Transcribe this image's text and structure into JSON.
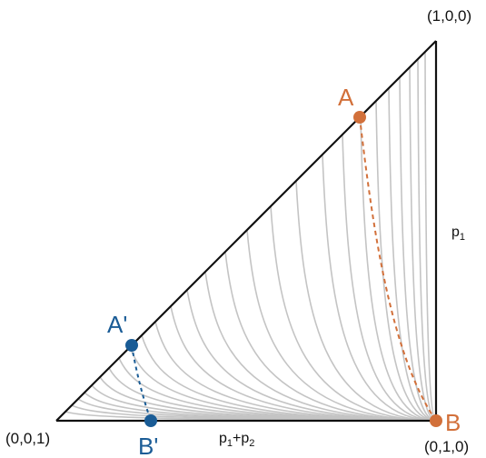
{
  "colors": {
    "orange": "#d2703a",
    "blue": "#1a5c96",
    "curve_gray": "#c4c4c4",
    "edge": "#111111"
  },
  "vertices": {
    "top": "(1,0,0)",
    "bottom_left": "(0,0,1)",
    "bottom_right": "(0,1,0)"
  },
  "axes": {
    "vertical_label": "p",
    "vertical_sub": "1",
    "horizontal_label_a": "p",
    "horizontal_sub_a": "1",
    "horizontal_plus": "+p",
    "horizontal_sub_b": "2"
  },
  "points": {
    "A": "A",
    "B": "B",
    "A_prime": "A'",
    "B_prime": "B'"
  }
}
